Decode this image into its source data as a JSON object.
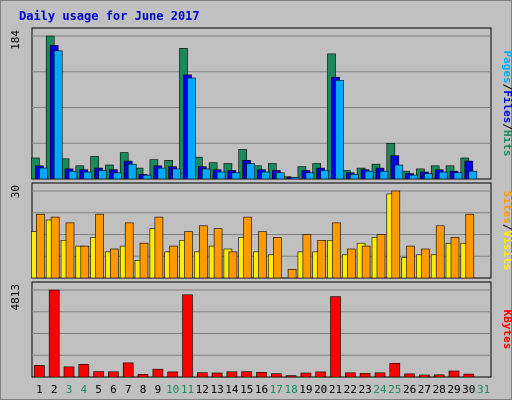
{
  "chart_data": [
    {
      "type": "bar",
      "title": "Daily usage for June 2017",
      "panel": "pages-files-hits",
      "ylabel_parts": [
        "Pages",
        "Files",
        "Hits"
      ],
      "ylabel_separators": [
        "/",
        "/"
      ],
      "ymax_label": "184",
      "ylim": [
        0,
        184
      ],
      "categories": [
        "1",
        "2",
        "3",
        "4",
        "5",
        "6",
        "7",
        "8",
        "9",
        "10",
        "11",
        "12",
        "13",
        "14",
        "15",
        "16",
        "17",
        "18",
        "19",
        "20",
        "21",
        "22",
        "23",
        "24",
        "25",
        "26",
        "27",
        "28",
        "29",
        "30",
        "31"
      ],
      "series": [
        {
          "name": "Hits",
          "color": "#1a8a5c",
          "values": [
            27,
            184,
            26,
            17,
            29,
            18,
            34,
            14,
            25,
            24,
            168,
            28,
            21,
            20,
            38,
            17,
            20,
            3,
            16,
            20,
            161,
            11,
            14,
            19,
            46,
            10,
            13,
            17,
            17,
            27,
            0
          ]
        },
        {
          "name": "Files",
          "color": "#0000e0",
          "values": [
            17,
            172,
            13,
            12,
            14,
            12,
            23,
            6,
            17,
            16,
            134,
            16,
            12,
            11,
            24,
            12,
            11,
            2,
            11,
            14,
            131,
            8,
            12,
            14,
            30,
            7,
            9,
            12,
            10,
            23,
            0
          ]
        },
        {
          "name": "Pages",
          "color": "#00aaff",
          "values": [
            14,
            165,
            10,
            9,
            11,
            8,
            19,
            5,
            14,
            13,
            130,
            13,
            9,
            8,
            20,
            9,
            8,
            2,
            8,
            11,
            127,
            6,
            10,
            10,
            18,
            5,
            7,
            9,
            8,
            10,
            0
          ]
        }
      ]
    },
    {
      "type": "bar",
      "panel": "visits-sites",
      "ylabel_parts": [
        "Sites",
        "Visits"
      ],
      "ylabel_separators": [
        "/"
      ],
      "ymax_label": "30",
      "ylim": [
        0,
        30
      ],
      "categories": [
        "1",
        "2",
        "3",
        "4",
        "5",
        "6",
        "7",
        "8",
        "9",
        "10",
        "11",
        "12",
        "13",
        "14",
        "15",
        "16",
        "17",
        "18",
        "19",
        "20",
        "21",
        "22",
        "23",
        "24",
        "25",
        "26",
        "27",
        "28",
        "29",
        "30",
        "31"
      ],
      "series": [
        {
          "name": "Visits",
          "color": "#ffee00",
          "values": [
            16,
            20,
            13,
            11,
            14,
            9,
            11,
            6,
            17,
            9,
            13,
            9,
            11,
            10,
            14,
            9,
            8,
            0,
            9,
            9,
            13,
            8,
            12,
            14,
            29,
            7,
            8,
            8,
            12,
            12,
            0
          ]
        },
        {
          "name": "Sites",
          "color": "#ff9900",
          "values": [
            22,
            21,
            19,
            11,
            22,
            10,
            19,
            12,
            21,
            11,
            16,
            18,
            17,
            9,
            21,
            16,
            14,
            3,
            15,
            13,
            19,
            10,
            11,
            15,
            30,
            11,
            10,
            18,
            14,
            22,
            0
          ]
        }
      ]
    },
    {
      "type": "bar",
      "panel": "kbytes",
      "ylabel_parts": [
        "KBytes"
      ],
      "ylabel_separators": [],
      "ymax_label": "4813",
      "ylim": [
        0,
        4813
      ],
      "categories": [
        "1",
        "2",
        "3",
        "4",
        "5",
        "6",
        "7",
        "8",
        "9",
        "10",
        "11",
        "12",
        "13",
        "14",
        "15",
        "16",
        "17",
        "18",
        "19",
        "20",
        "21",
        "22",
        "23",
        "24",
        "25",
        "26",
        "27",
        "28",
        "29",
        "30",
        "31"
      ],
      "series": [
        {
          "name": "KBytes",
          "color": "#ff0000",
          "values": [
            640,
            4813,
            560,
            700,
            300,
            290,
            780,
            150,
            430,
            280,
            4550,
            240,
            220,
            290,
            300,
            260,
            180,
            80,
            220,
            280,
            4450,
            230,
            200,
            230,
            760,
            170,
            110,
            120,
            330,
            160,
            0
          ]
        }
      ]
    }
  ],
  "x_tick_colors": [
    "#000000",
    "#000000",
    "#1a8a5c",
    "#1a8a5c",
    "#000000",
    "#000000",
    "#000000",
    "#000000",
    "#000000",
    "#1a8a5c",
    "#1a8a5c",
    "#000000",
    "#000000",
    "#000000",
    "#000000",
    "#000000",
    "#1a8a5c",
    "#1a8a5c",
    "#000000",
    "#000000",
    "#000000",
    "#000000",
    "#000000",
    "#1a8a5c",
    "#1a8a5c",
    "#000000",
    "#000000",
    "#000000",
    "#000000",
    "#000000",
    "#1a8a5c"
  ],
  "colors": {
    "background": "#c0c0c0",
    "panel": "#c0c0c0",
    "grid": "#808080",
    "title": "#0000cc",
    "weekend_tick": "#1a8a5c"
  }
}
